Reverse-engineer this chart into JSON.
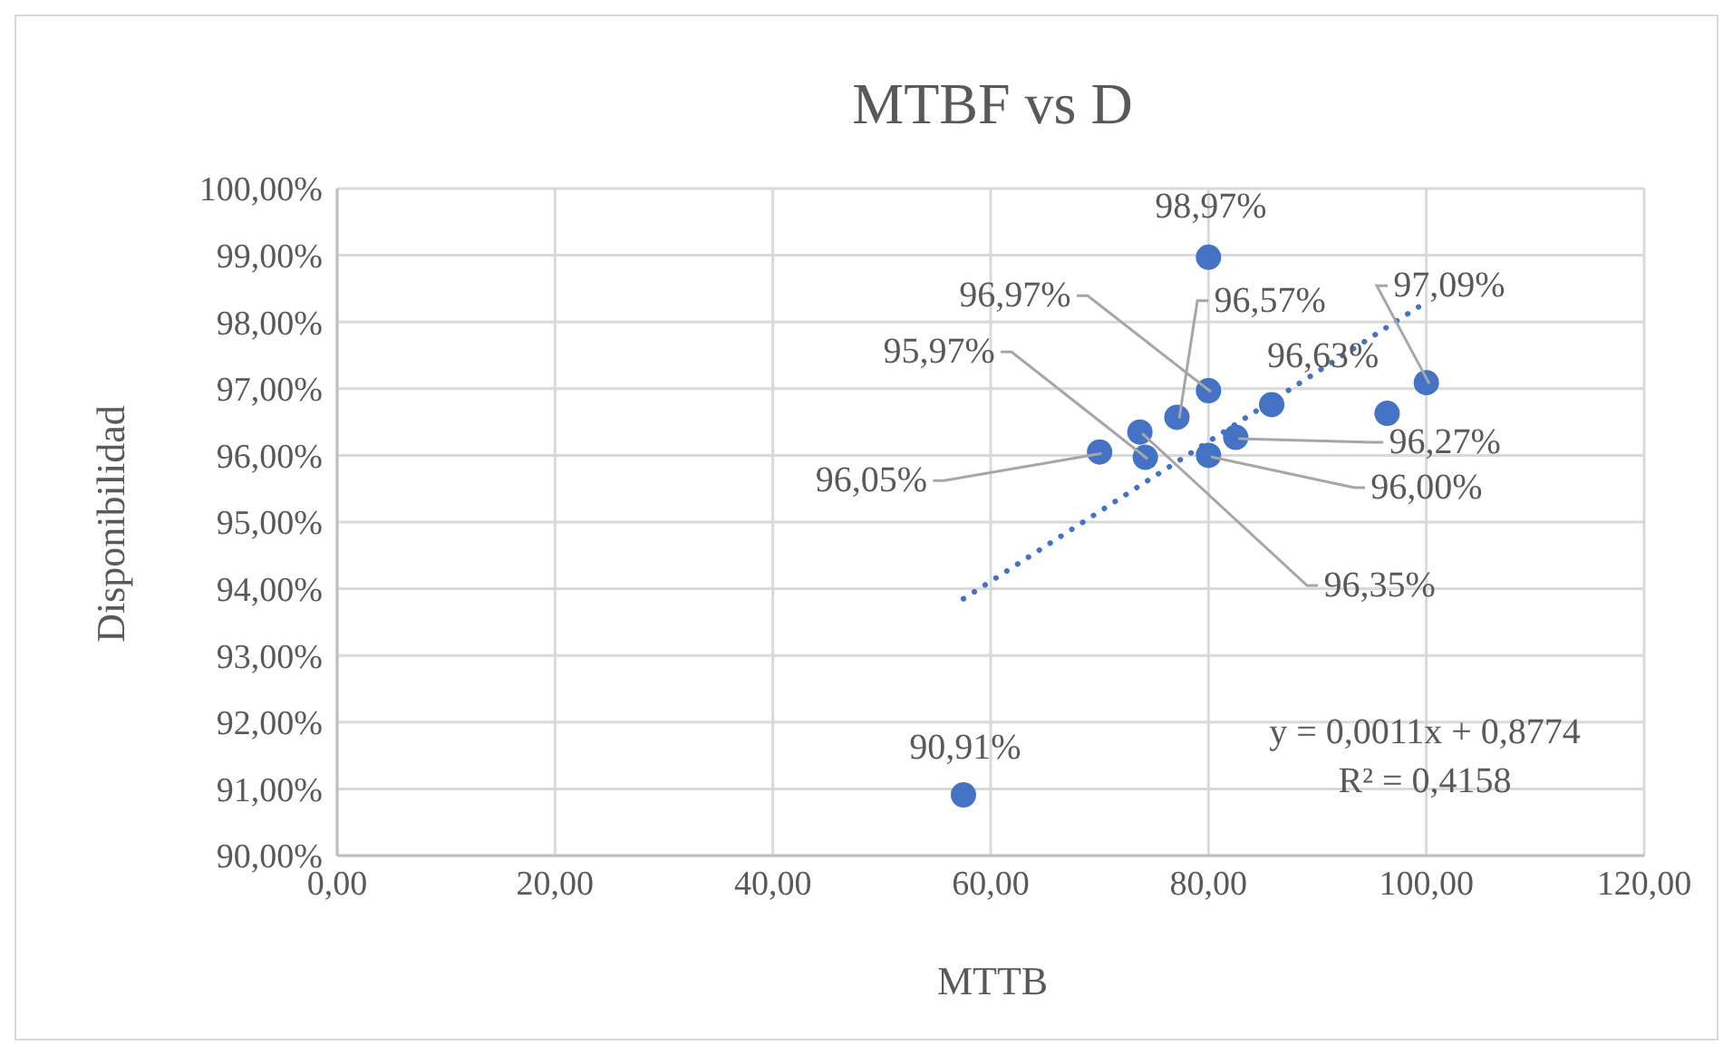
{
  "chart_data": {
    "type": "scatter",
    "title": "MTBF vs D",
    "xlabel": "MTTB",
    "ylabel": "Disponibilidad",
    "xlim": [
      0,
      120
    ],
    "xticks": [
      {
        "value": 0,
        "label": "0,00"
      },
      {
        "value": 20,
        "label": "20,00"
      },
      {
        "value": 40,
        "label": "40,00"
      },
      {
        "value": 60,
        "label": "60,00"
      },
      {
        "value": 80,
        "label": "80,00"
      },
      {
        "value": 100,
        "label": "100,00"
      },
      {
        "value": 120,
        "label": "120,00"
      }
    ],
    "ylim": [
      90,
      100
    ],
    "yticks": [
      {
        "value": 90,
        "label": "90,00%"
      },
      {
        "value": 91,
        "label": "91,00%"
      },
      {
        "value": 92,
        "label": "92,00%"
      },
      {
        "value": 93,
        "label": "93,00%"
      },
      {
        "value": 94,
        "label": "94,00%"
      },
      {
        "value": 95,
        "label": "95,00%"
      },
      {
        "value": 96,
        "label": "96,00%"
      },
      {
        "value": 97,
        "label": "97,00%"
      },
      {
        "value": 98,
        "label": "98,00%"
      },
      {
        "value": 99,
        "label": "99,00%"
      },
      {
        "value": 100,
        "label": "100,00%"
      }
    ],
    "grid": true,
    "marker": "circle",
    "series": [
      {
        "color": "#4472c4",
        "x": [
          57.5,
          80,
          80,
          77.1,
          73.7,
          74.2,
          70,
          80,
          82.5,
          85.8,
          96.4,
          100
        ],
        "values": [
          90.91,
          98.97,
          96.97,
          96.57,
          96.35,
          95.97,
          96.05,
          96.0,
          96.27,
          96.76,
          96.63,
          97.09
        ],
        "value_labels": [
          "90,91%",
          "98,97%",
          "96,97%",
          "96,57%",
          "96,35%",
          "95,97%",
          "96,05%",
          "96,00%",
          "96,27%",
          null,
          "96,63%",
          "97,09%"
        ]
      },
      {
        "type": "line",
        "color": "#4472c4",
        "x": [
          57.5,
          100
        ],
        "values": [
          93.85,
          98.3
        ],
        "line_style": "dotted",
        "marker": "none"
      }
    ],
    "annotations": [
      "y = 0,0011x + 0,8774",
      "R² = 0,4158"
    ]
  }
}
